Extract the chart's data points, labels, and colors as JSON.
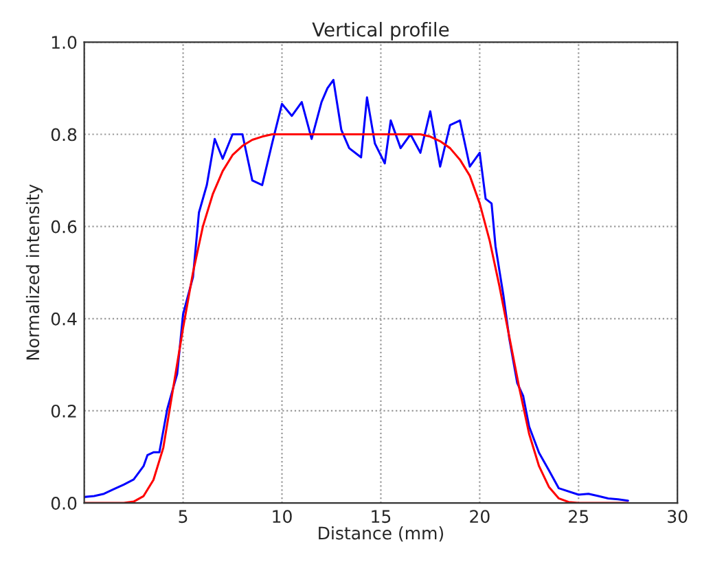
{
  "chart_data": {
    "type": "line",
    "title": "Vertical profile",
    "xlabel": "Distance (mm)",
    "ylabel": "Normalized intensity",
    "xlim": [
      0,
      30
    ],
    "xticks": [
      {
        "value": 0,
        "label": null
      },
      5,
      10,
      15,
      20,
      25,
      30
    ],
    "ylim": [
      0,
      1.0
    ],
    "yticks": [
      {
        "value": 0,
        "label": "0.0"
      },
      0.2,
      0.4,
      0.6,
      0.8,
      {
        "value": 1.0,
        "label": "1.0"
      }
    ],
    "grid": true,
    "line_style": "solid",
    "marker": "none",
    "series": [
      {
        "color": "#0000ff",
        "x": [
          0,
          0.5,
          1,
          1.5,
          2,
          2.5,
          3,
          3.2,
          3.5,
          3.8,
          4.2,
          4.5,
          4.7,
          5,
          5.5,
          5.8,
          6.2,
          6.6,
          7,
          7.5,
          8,
          8.5,
          9,
          9.5,
          10,
          10.5,
          11,
          11.5,
          12,
          12.3,
          12.6,
          13,
          13.4,
          14,
          14.3,
          14.7,
          15.2,
          15.5,
          16,
          16.5,
          17,
          17.5,
          18,
          18.5,
          19,
          19.5,
          20,
          20.3,
          20.6,
          20.8,
          21.2,
          21.5,
          21.9,
          22.2,
          22.5,
          23,
          23.5,
          24,
          25,
          25.5,
          26,
          26.5,
          27,
          27.5
        ],
        "values": [
          0.013,
          0.015,
          0.02,
          0.03,
          0.04,
          0.051,
          0.08,
          0.104,
          0.11,
          0.11,
          0.204,
          0.25,
          0.28,
          0.41,
          0.49,
          0.63,
          0.69,
          0.79,
          0.747,
          0.8,
          0.8,
          0.7,
          0.69,
          0.78,
          0.866,
          0.84,
          0.87,
          0.79,
          0.87,
          0.9,
          0.918,
          0.81,
          0.77,
          0.75,
          0.88,
          0.78,
          0.737,
          0.83,
          0.77,
          0.8,
          0.76,
          0.85,
          0.73,
          0.82,
          0.83,
          0.73,
          0.76,
          0.66,
          0.65,
          0.557,
          0.45,
          0.356,
          0.26,
          0.232,
          0.166,
          0.109,
          0.071,
          0.032,
          0.018,
          0.02,
          0.015,
          0.01,
          0.008,
          0.005
        ]
      },
      {
        "color": "#ff0000",
        "x": [
          0,
          1,
          2,
          2.5,
          3,
          3.5,
          4,
          4.5,
          5,
          5.5,
          6,
          6.5,
          7,
          7.5,
          8,
          8.5,
          9,
          9.5,
          10,
          17,
          17.5,
          18,
          18.5,
          19,
          19.5,
          20,
          20.5,
          21,
          21.5,
          22,
          22.5,
          23,
          23.5,
          24,
          24.5,
          25,
          27.5
        ],
        "values": [
          0,
          0,
          0,
          0.003,
          0.015,
          0.05,
          0.12,
          0.25,
          0.38,
          0.5,
          0.6,
          0.67,
          0.72,
          0.755,
          0.775,
          0.788,
          0.795,
          0.8,
          0.8,
          0.8,
          0.795,
          0.785,
          0.77,
          0.745,
          0.71,
          0.65,
          0.57,
          0.47,
          0.36,
          0.25,
          0.15,
          0.08,
          0.035,
          0.01,
          0.002,
          0,
          0
        ]
      }
    ]
  }
}
